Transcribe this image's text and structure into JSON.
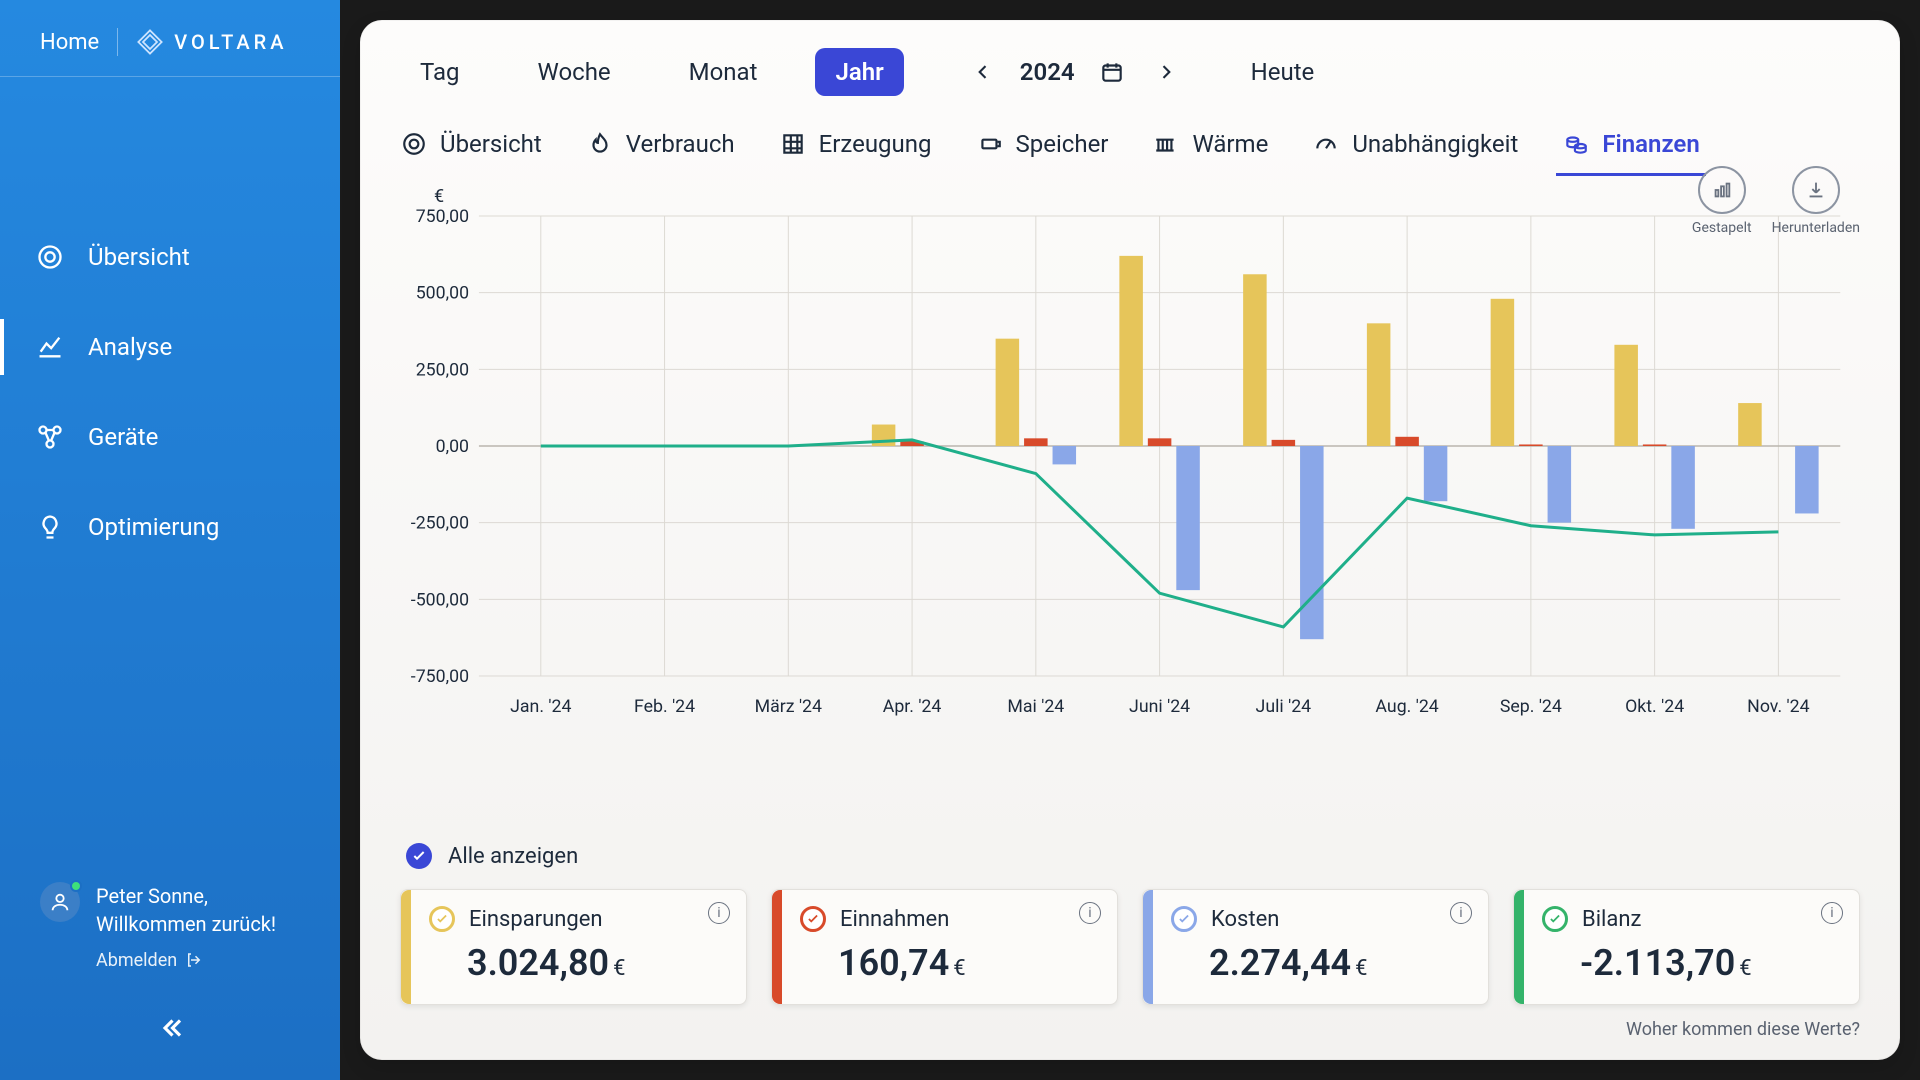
{
  "sidebar": {
    "home": "Home",
    "brand": "VOLTARA",
    "items": [
      {
        "label": "Übersicht",
        "icon": "target"
      },
      {
        "label": "Analyse",
        "icon": "chart-line",
        "active": true
      },
      {
        "label": "Geräte",
        "icon": "nodes"
      },
      {
        "label": "Optimierung",
        "icon": "bulb"
      }
    ],
    "user_name": "Peter Sonne,",
    "welcome": "Willkommen zurück!",
    "logout": "Abmelden"
  },
  "period": {
    "tabs": [
      "Tag",
      "Woche",
      "Monat",
      "Jahr"
    ],
    "active_index": 3,
    "year": "2024",
    "today": "Heute"
  },
  "categories": {
    "tabs": [
      {
        "label": "Übersicht",
        "icon": "target"
      },
      {
        "label": "Verbrauch",
        "icon": "flame"
      },
      {
        "label": "Erzeugung",
        "icon": "grid"
      },
      {
        "label": "Speicher",
        "icon": "battery"
      },
      {
        "label": "Wärme",
        "icon": "radiator"
      },
      {
        "label": "Unabhängigkeit",
        "icon": "gauge"
      },
      {
        "label": "Finanzen",
        "icon": "coins",
        "active": true
      }
    ]
  },
  "chart_actions": {
    "stacked": "Gestapelt",
    "download": "Herunterladen"
  },
  "chart": {
    "type": "bar+line",
    "y_unit": "€",
    "ylim": [
      -750,
      750
    ],
    "ytick_step": 250,
    "yticks_formatted": [
      "750,00",
      "500,00",
      "250,00",
      "0,00",
      "-250,00",
      "-500,00",
      "-750,00"
    ],
    "background_color": "#fdfcfb",
    "grid_color": "#dcd9d3",
    "axis_color": "#bab6ae",
    "label_color": "#1d2a3b",
    "label_fontsize": 18,
    "bar_group_gap_ratio": 0.35,
    "bar_inner_gap_ratio": 0.04,
    "series_bar": [
      {
        "name": "Einsparungen",
        "color": "#e6c55a"
      },
      {
        "name": "Einnahmen",
        "color": "#d84a2a"
      },
      {
        "name": "Kosten",
        "color": "#8aa7e8"
      }
    ],
    "series_line": {
      "name": "Bilanz",
      "color": "#1faf8a",
      "width": 3
    },
    "months": [
      "Jan. '24",
      "Feb. '24",
      "März '24",
      "Apr. '24",
      "Mai '24",
      "Juni '24",
      "Juli '24",
      "Aug. '24",
      "Sep. '24",
      "Okt. '24",
      "Nov. '24"
    ],
    "bars": {
      "einsparungen": [
        0,
        0,
        0,
        70,
        350,
        620,
        560,
        400,
        480,
        330,
        140
      ],
      "einnahmen": [
        0,
        0,
        0,
        15,
        25,
        25,
        20,
        30,
        5,
        5,
        0
      ],
      "kosten": [
        0,
        0,
        0,
        0,
        -60,
        -470,
        -630,
        -180,
        -250,
        -270,
        -220
      ]
    },
    "line_bilanz": [
      0,
      0,
      0,
      20,
      -90,
      -480,
      -590,
      -170,
      -260,
      -290,
      -280
    ]
  },
  "legend": {
    "all": "Alle anzeigen"
  },
  "cards": [
    {
      "title": "Einsparungen",
      "value": "3.024,80",
      "unit": "€",
      "color": "#e6c55a"
    },
    {
      "title": "Einnahmen",
      "value": "160,74",
      "unit": "€",
      "color": "#d84a2a"
    },
    {
      "title": "Kosten",
      "value": "2.274,44",
      "unit": "€",
      "color": "#8aa7e8"
    },
    {
      "title": "Bilanz",
      "value": "-2.113,70",
      "unit": "€",
      "color": "#34b36a"
    }
  ],
  "footnote": "Woher kommen diese Werte?"
}
